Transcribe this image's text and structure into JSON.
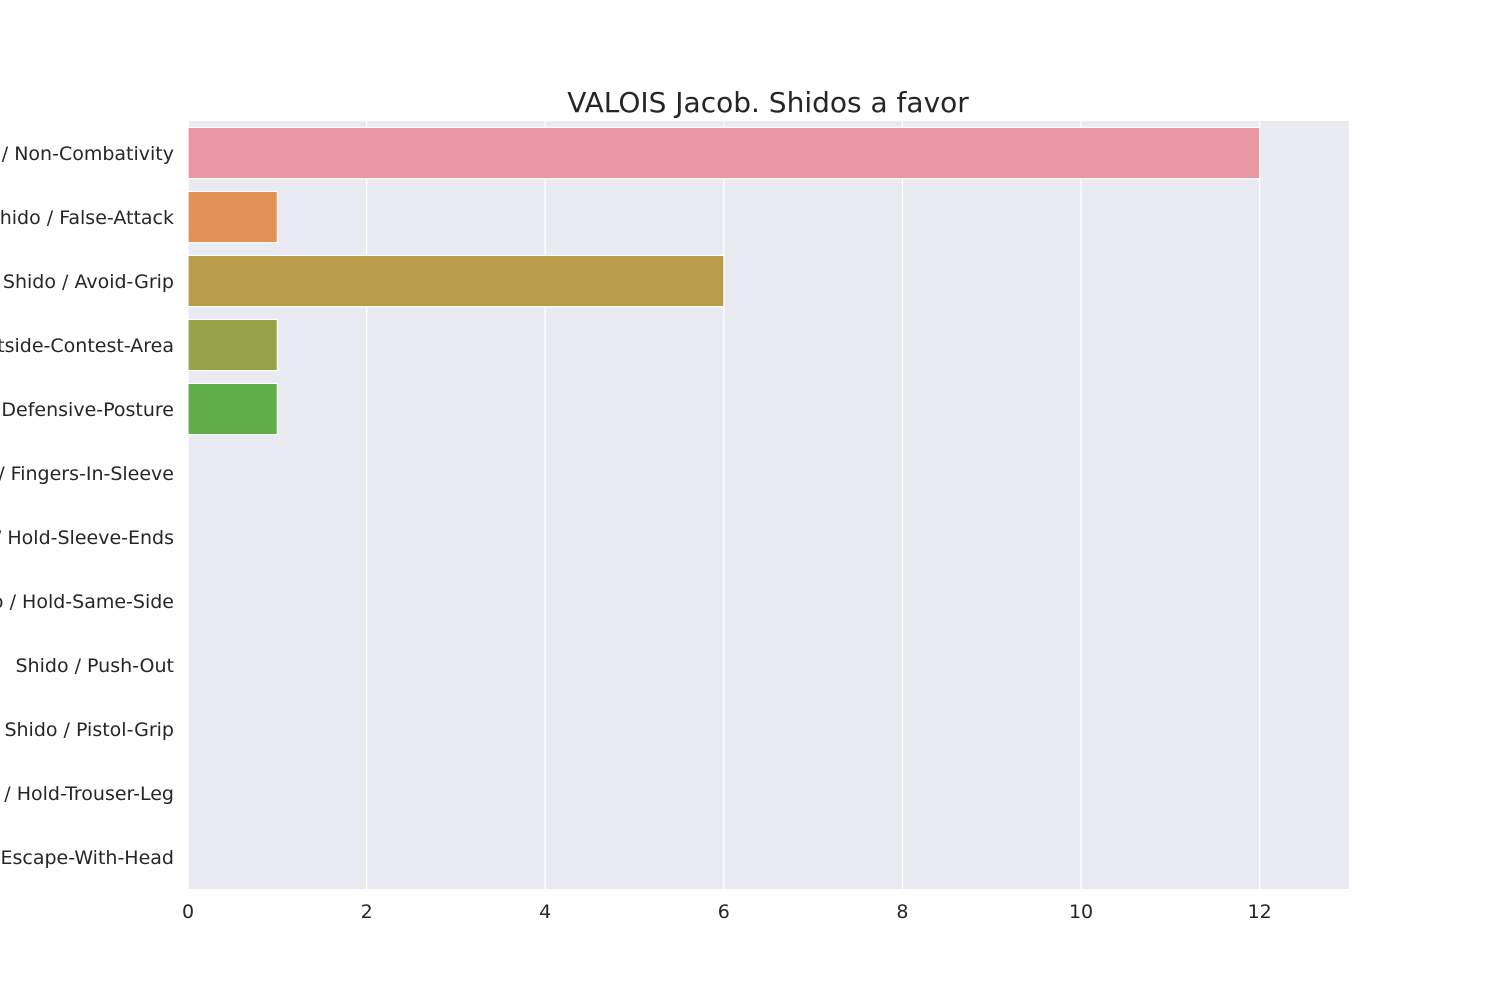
{
  "chart_data": {
    "type": "bar",
    "orientation": "horizontal",
    "title": "VALOIS Jacob. Shidos a favor",
    "xlabel": "",
    "ylabel": "",
    "xlim": [
      0,
      13
    ],
    "x_ticks": [
      0,
      2,
      4,
      6,
      8,
      10,
      12
    ],
    "grid": true,
    "categories": [
      "Shido / Non-Combativity",
      "Shido / False-Attack",
      "Shido / Avoid-Grip",
      "Shido / Outside-Contest-Area",
      "Shido / Defensive-Posture",
      "Shido / Fingers-In-Sleeve",
      "Shido / Hold-Sleeve-Ends",
      "Shido / Hold-Same-Side",
      "Shido / Push-Out",
      "Shido / Pistol-Grip",
      "Shido / Hold-Trouser-Leg",
      "Shido / Escape-With-Head"
    ],
    "values": [
      12,
      1,
      6,
      1,
      1,
      0,
      0,
      0,
      0,
      0,
      0,
      0
    ],
    "colors": [
      "#ea96a3",
      "#e19153",
      "#b89c49",
      "#98a246",
      "#5fae47",
      "#50b17b",
      "#52ae9e",
      "#55abb6",
      "#5aa7cc",
      "#8f9ef0",
      "#cc8cef",
      "#ea84d1"
    ],
    "background": "#eaeaf2",
    "grid_color": "#ffffff"
  }
}
